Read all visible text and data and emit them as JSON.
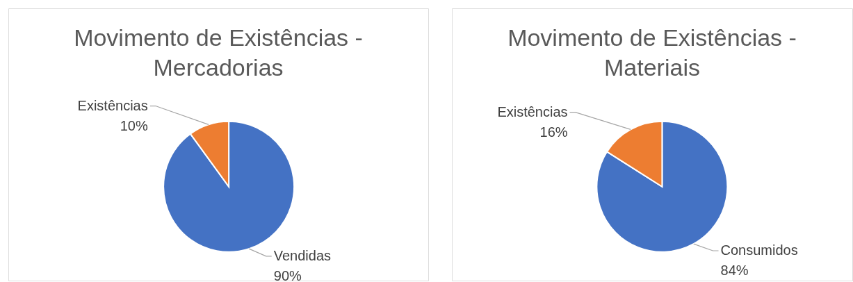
{
  "chart_data": [
    {
      "type": "pie",
      "title": "Movimento de Existências - Mercadorias",
      "categories": [
        "Vendidas",
        "Existências"
      ],
      "values": [
        90,
        10
      ],
      "colors": [
        "#4472c4",
        "#ed7d31"
      ],
      "value_labels": [
        "90%",
        "10%"
      ]
    },
    {
      "type": "pie",
      "title": "Movimento de Existências - Materiais",
      "categories": [
        "Consumidos",
        "Existências"
      ],
      "values": [
        84,
        16
      ],
      "colors": [
        "#4472c4",
        "#ed7d31"
      ],
      "value_labels": [
        "84%",
        "16%"
      ]
    }
  ]
}
